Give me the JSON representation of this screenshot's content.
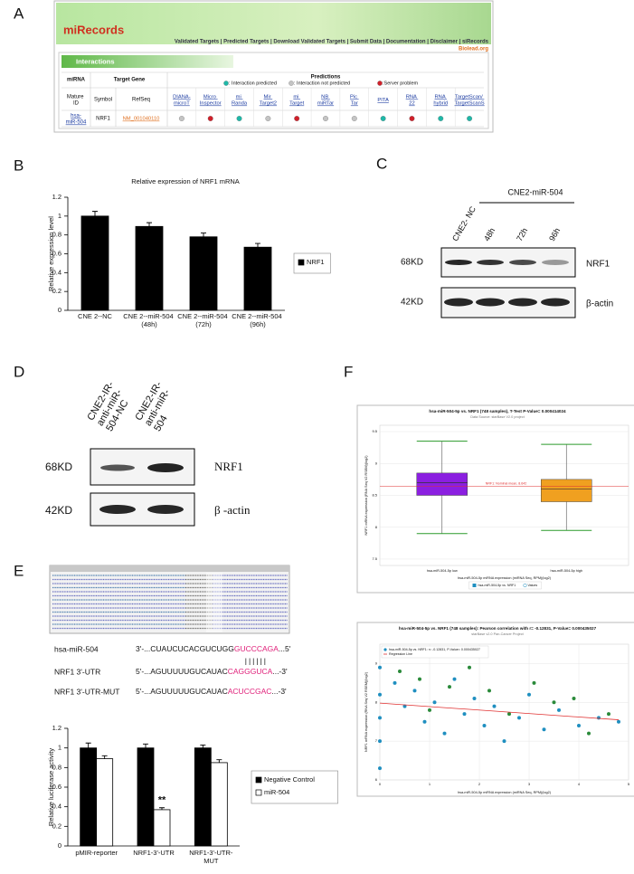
{
  "panels": [
    "A",
    "B",
    "C",
    "D",
    "E",
    "F"
  ],
  "mirecords": {
    "logo": "miRecords",
    "nav": "Validated Targets | Predicted Targets | Download Validated Targets | Submit Data | Documentation | Disclaimer | siRecords",
    "site": "Biolead.org",
    "section": "Interactions",
    "headers": {
      "mirna": "miRNA",
      "target": "Target Gene",
      "predictions": "Predictions",
      "mature": "Mature ID",
      "symbol": "Symbol",
      "refseq": "RefSeq"
    },
    "legend": [
      {
        "label": ": Interaction predicted",
        "color": "#1fb8a8"
      },
      {
        "label": ": Interaction not predicted",
        "color": "#c4c4c4"
      },
      {
        "label": ":Server problem",
        "color": "#d0202a"
      }
    ],
    "tools": [
      "DIANA-microT",
      "Micro Inspector",
      "mi Randa",
      "Mir Target2",
      "mi Target",
      "NB miRTar",
      "Pic Tar",
      "PITA",
      "RNA 22",
      "RNA hybrid",
      "TargetScan/ TargetScanS"
    ],
    "row": {
      "mirna": "hsa-miR-504",
      "symbol": "NRF1",
      "refseq": "NM_001040110",
      "status": [
        1,
        2,
        0,
        1,
        2,
        1,
        1,
        0,
        2,
        0,
        0
      ]
    }
  },
  "blot_c": {
    "group": "CNE2-miR-504",
    "lanes": [
      "CNE2- NC",
      "48h",
      "72h",
      "96h"
    ],
    "sizes": [
      "68KD",
      "42KD"
    ],
    "proteins": [
      "NRF1",
      "β-actin"
    ]
  },
  "blot_d": {
    "lanes": [
      "CNE2-IR-anti-miR-504-NC",
      "CNE2-IR-anti-miR-504"
    ],
    "sizes": [
      "68KD",
      "42KD"
    ],
    "proteins": [
      "NRF1",
      "β -actin"
    ]
  },
  "sequences": {
    "pairing": "||||||",
    "rows": [
      {
        "name": "hsa-miR-504",
        "pre": "3'-...CUAUCUCACGUCUGG",
        "site": "GUCCCAGA",
        "post": "...5'"
      },
      {
        "name": "NRF1 3'-UTR",
        "pre": "5'-...AGUUUUUGUCAUAC",
        "site": "CAGGGUCA",
        "post": "...-3'"
      },
      {
        "name": "NRF1 3'-UTR-MUT",
        "pre": "5'-...AGUUUUUGUCAUAC",
        "site": "ACUCCGAC",
        "post": "...-3'"
      }
    ]
  },
  "chart_data": [
    {
      "type": "bar",
      "title": "Relative expression of NRF1 mRNA",
      "y_label": "Relative expression level",
      "categories": [
        "CNE 2--NC",
        "CNE 2--miR-504 (48h)",
        "CNE 2--miR-504 (72h)",
        "CNE 2--miR-504 (96h)"
      ],
      "series": [
        {
          "name": "NRF1",
          "color": "#000000",
          "values": [
            1.0,
            0.89,
            0.78,
            0.67
          ],
          "errors": [
            0.05,
            0.04,
            0.04,
            0.04
          ]
        }
      ],
      "ylim": [
        0,
        1.2
      ],
      "yticks": [
        0,
        0.2,
        0.4,
        0.6,
        0.8,
        1,
        1.2
      ],
      "legend": "right"
    },
    {
      "type": "bar",
      "y_label": "Relative luciferase activity",
      "annotations": [
        "**"
      ],
      "categories": [
        "pMIR-reporter",
        "NRF1-3'-UTR",
        "NRF1-3'-UTR-MUT"
      ],
      "series": [
        {
          "name": "Negative Control",
          "color": "#000000",
          "values": [
            1.0,
            1.0,
            1.0
          ],
          "errors": [
            0.05,
            0.04,
            0.03
          ]
        },
        {
          "name": "miR-504",
          "color": "#ffffff",
          "values": [
            0.89,
            0.37,
            0.85
          ],
          "errors": [
            0.03,
            0.02,
            0.03
          ]
        }
      ],
      "ylim": [
        0,
        1.2
      ],
      "yticks": [
        0,
        0.2,
        0.4,
        0.6,
        0.8,
        1,
        1.2
      ],
      "legend": "right"
    },
    {
      "type": "box",
      "title": "hsa-miR-504-5p vs. NRF1 (748 samples), T-Test P-Value= 0.000414024",
      "subtitle": "Data Source: starBase V2.0 project",
      "x_label": "hsa-miR-504-5p miRNA expression (miRNA Seq, RPM)(log2)",
      "y_label": "NRF1 mRNA expression (RNA Seq V2 RSEM)(log2)",
      "categories": [
        "hsa-miR-504-5p low",
        "hsa-miR-504-5p high"
      ],
      "colors": [
        "#8b1fe0",
        "#f0a020"
      ],
      "min": [
        7.9,
        7.95
      ],
      "q1": [
        8.5,
        8.4
      ],
      "median": [
        8.7,
        8.6
      ],
      "q3": [
        8.85,
        8.75
      ],
      "max": [
        9.35,
        9.3
      ],
      "reference": {
        "label": "NRF1: Nominal mean, 8.642",
        "value": 8.642,
        "color": "#e03030"
      },
      "legend": [
        "hsa-miR-504-5p vs. NRF1",
        "Values"
      ],
      "ylim": [
        7.4,
        9.6
      ],
      "yticks": [
        7.5,
        8,
        8.5,
        9,
        9.5
      ],
      "grid": true
    },
    {
      "type": "scatter",
      "title": "hsa-miR-504-5p vs. NRF1 (748 samples): Pearson correlation with r= -0.12831, P-Value= 0.000435027",
      "subtitle": "starBase v2.0 Pan-Cancer Project",
      "x_label": "hsa-miR-504-5p miRNA expression (miRNA Seq, RPM)(log2)",
      "y_label": "NRF1 mRNA expression (RNA Seq V2 RSEM)(log2)",
      "series": [
        {
          "name": "hsa-miR-504-5p vs. NRF1: r= -0.12831, P-Value= 0.000435027",
          "color": "#1f8fc0",
          "x": [
            0,
            0,
            0,
            0,
            0,
            0.3,
            0.5,
            0.7,
            0.9,
            1.1,
            1.3,
            1.5,
            1.7,
            1.9,
            2.1,
            2.3,
            2.5,
            2.8,
            3.0,
            3.3,
            3.6,
            4.0,
            4.4,
            4.8
          ],
          "y": [
            8.9,
            8.2,
            7.6,
            7.0,
            6.3,
            8.5,
            7.9,
            8.3,
            7.5,
            8.0,
            7.2,
            8.6,
            7.7,
            8.1,
            7.4,
            7.9,
            7.0,
            7.6,
            8.2,
            7.3,
            7.8,
            7.4,
            7.6,
            7.5
          ]
        },
        {
          "color": "#2a8a3a",
          "x": [
            0.4,
            0.8,
            1.0,
            1.4,
            1.8,
            2.2,
            2.6,
            3.1,
            3.5,
            3.9,
            4.2,
            4.6
          ],
          "y": [
            8.8,
            8.6,
            7.8,
            8.4,
            8.9,
            8.3,
            7.7,
            8.5,
            8.0,
            8.1,
            7.2,
            7.7
          ]
        }
      ],
      "fit": {
        "name": "Regression Line",
        "color": "#e03030",
        "x": [
          0,
          4.8
        ],
        "y": [
          7.98,
          7.55
        ]
      },
      "xlim": [
        0,
        5
      ],
      "xticks": [
        0,
        1,
        2,
        3,
        4,
        5
      ],
      "ylim": [
        6,
        9.5
      ],
      "yticks": [
        6,
        7,
        8,
        9
      ],
      "grid": true
    }
  ]
}
